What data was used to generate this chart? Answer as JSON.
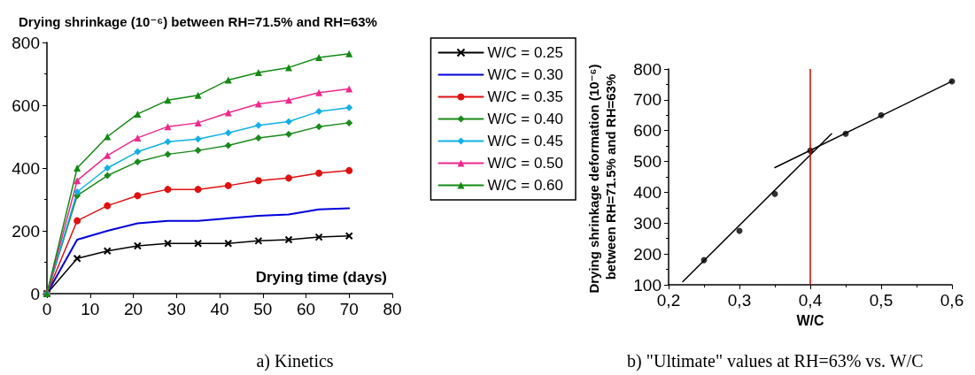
{
  "chart_data": [
    {
      "type": "line",
      "title": "Drying shrinkage (10⁻⁶) between RH=71.5% and RH=63%",
      "xlabel": "Drying time (days)",
      "x": [
        0,
        7,
        14,
        21,
        28,
        35,
        42,
        49,
        56,
        63,
        70
      ],
      "xlim": [
        0,
        80
      ],
      "xticks": [
        0,
        10,
        20,
        30,
        40,
        50,
        60,
        70,
        80
      ],
      "ylim": [
        0,
        800
      ],
      "yticks": [
        0,
        200,
        400,
        600,
        800
      ],
      "grid": false,
      "legend": "right",
      "annotations": [
        "a) Kinetics"
      ],
      "series": [
        {
          "name": "W/C = 0.25",
          "color": "#000000",
          "marker": "cross",
          "values": [
            0,
            112,
            136,
            152,
            160,
            160,
            160,
            168,
            172,
            180,
            184
          ]
        },
        {
          "name": "W/C = 0.30",
          "color": "#0000dd",
          "marker": "none",
          "values": [
            0,
            172,
            200,
            224,
            232,
            232,
            240,
            248,
            252,
            268,
            272
          ]
        },
        {
          "name": "W/C = 0.35",
          "color": "#e01010",
          "marker": "circle",
          "values": [
            0,
            232,
            280,
            312,
            332,
            332,
            344,
            360,
            368,
            384,
            392
          ]
        },
        {
          "name": "W/C = 0.40",
          "color": "#1a8a1a",
          "marker": "diamond",
          "values": [
            0,
            312,
            376,
            420,
            444,
            456,
            472,
            496,
            508,
            532,
            544
          ]
        },
        {
          "name": "W/C = 0.45",
          "color": "#10b0e8",
          "marker": "diamond",
          "values": [
            0,
            324,
            400,
            452,
            484,
            492,
            512,
            536,
            548,
            580,
            592
          ]
        },
        {
          "name": "W/C = 0.50",
          "color": "#f0288c",
          "marker": "triangle",
          "values": [
            0,
            360,
            440,
            496,
            532,
            544,
            576,
            604,
            616,
            640,
            652
          ]
        },
        {
          "name": "W/C = 0.60",
          "color": "#138a13",
          "marker": "triangle",
          "values": [
            0,
            400,
            500,
            572,
            616,
            632,
            680,
            704,
            720,
            752,
            764
          ]
        }
      ]
    },
    {
      "type": "scatter",
      "xlabel": "W/C",
      "ylabel": "Drying shrinkage deformation (10⁻⁶) between RH=71.5% and RH=63%",
      "xlim": [
        0.2,
        0.6
      ],
      "xticks": [
        {
          "value": 0.2,
          "label": "0,2"
        },
        {
          "value": 0.3,
          "label": "0,3"
        },
        {
          "value": 0.4,
          "label": "0,4"
        },
        {
          "value": 0.5,
          "label": "0,5"
        },
        {
          "value": 0.6,
          "label": "0,6"
        }
      ],
      "ylim": [
        100,
        800
      ],
      "yticks": [
        100,
        200,
        300,
        400,
        500,
        600,
        700,
        800
      ],
      "grid": false,
      "legend": false,
      "marker": "circle",
      "ref_lines": [
        {
          "axis": "x",
          "value": 0.4,
          "color": "#cc0000"
        }
      ],
      "annotations": [
        "b) \"Ultimate\" values at RH=63% vs. W/C"
      ],
      "series": [
        {
          "color": "#000000",
          "x": [
            0.25,
            0.3,
            0.35,
            0.4,
            0.45,
            0.5,
            0.6
          ],
          "values": [
            180,
            275,
            395,
            535,
            590,
            650,
            760
          ]
        },
        {
          "type": "line",
          "color": "#000000",
          "marker": "none",
          "x": [
            0.22,
            0.43
          ],
          "values": [
            110,
            590
          ]
        },
        {
          "type": "line",
          "color": "#000000",
          "marker": "none",
          "x": [
            0.35,
            0.6
          ],
          "values": [
            480,
            760
          ]
        }
      ]
    }
  ]
}
